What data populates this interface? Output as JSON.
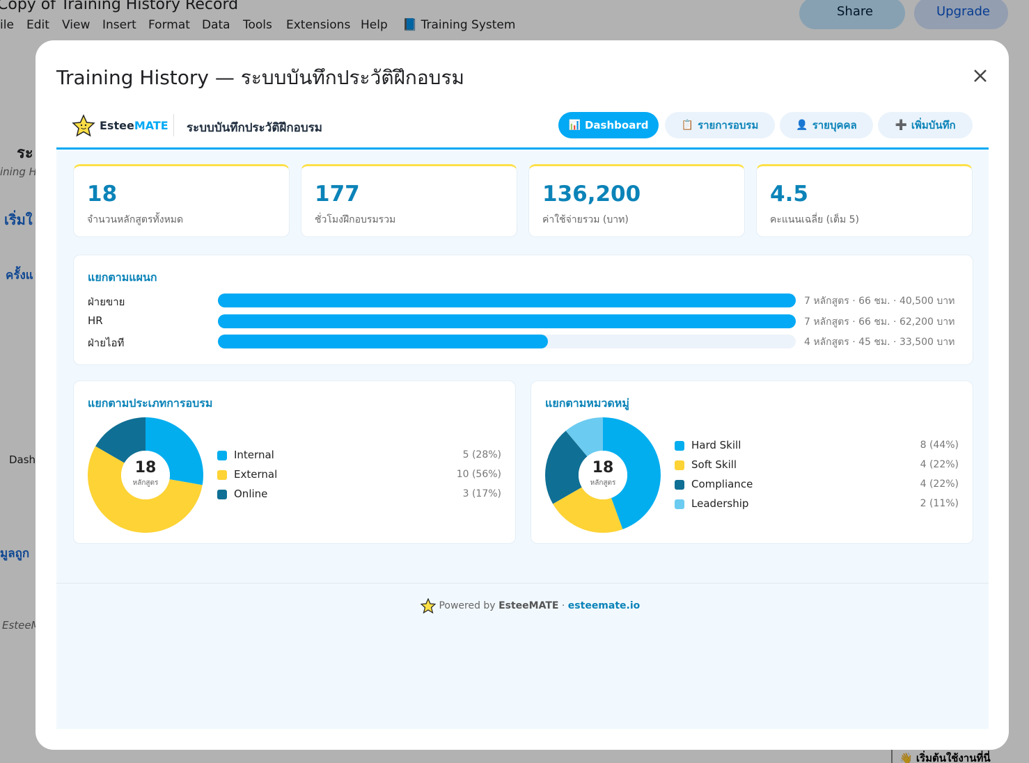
{
  "sheet": {
    "doc_title": "Copy of Training History Record",
    "menu": [
      "ile",
      "Edit",
      "View",
      "Insert",
      "Format",
      "Data",
      "Tools",
      "Extensions",
      "Help"
    ],
    "training_system": "Training System",
    "share": "Share",
    "upgrade": "Upgrade",
    "sidebar_fragments": [
      "ระ",
      "ining H",
      "เริ่มใ",
      "ครั้งแ",
      "Dash",
      "มูลถูก",
      "EsteeM"
    ],
    "help_link": "เริ่มต้นใช้งานที่นี่"
  },
  "dialog": {
    "title": "Training History — ระบบบันทึกประวัติฝึกอบรม",
    "app": {
      "brand_a": "Estee",
      "brand_b": "MATE",
      "subtitle": "ระบบบันทึกประวัติฝึกอบรม",
      "tabs": [
        {
          "icon": "📊",
          "label": "Dashboard",
          "active": true
        },
        {
          "icon": "📋",
          "label": "รายการอบรม",
          "active": false
        },
        {
          "icon": "👤",
          "label": "รายบุคคล",
          "active": false
        },
        {
          "icon": "➕",
          "label": "เพิ่มบันทึก",
          "active": false
        }
      ],
      "kpis": [
        {
          "value": "18",
          "label": "จำนวนหลักสูตรทั้งหมด"
        },
        {
          "value": "177",
          "label": "ชั่วโมงฝึกอบรมรวม"
        },
        {
          "value": "136,200",
          "label": "ค่าใช้จ่ายรวม (บาท)"
        },
        {
          "value": "4.5",
          "label": "คะแนนเฉลี่ย (เต็ม 5)"
        }
      ],
      "departments": {
        "title": "แยกตามแผนก",
        "color": "#03a9f4",
        "rows": [
          {
            "name": "ฝ่ายขาย",
            "value": 7,
            "label": "7 หลักสูตร · 66 ชม. · 40,500 บาท"
          },
          {
            "name": "HR",
            "value": 7,
            "label": "7 หลักสูตร · 66 ชม. · 62,200 บาท"
          },
          {
            "name": "ฝ่ายไอที",
            "value": 4,
            "label": "4 หลักสูตร · 45 ชม. · 33,500 บาท"
          }
        ]
      },
      "pies": [
        {
          "title": "แยกตามประเภทการอบรม",
          "center_value": "18",
          "center_label": "หลักสูตร",
          "categories": [
            "Internal",
            "External",
            "Online"
          ],
          "values": [
            5,
            10,
            3
          ],
          "value_labels": [
            "5 (28%)",
            "10 (56%)",
            "3 (17%)"
          ],
          "colors": [
            "#03aeef",
            "#fdd335",
            "#106f94"
          ]
        },
        {
          "title": "แยกตามหมวดหมู่",
          "center_value": "18",
          "center_label": "หลักสูตร",
          "categories": [
            "Hard Skill",
            "Soft Skill",
            "Compliance",
            "Leadership"
          ],
          "values": [
            8,
            4,
            4,
            2
          ],
          "value_labels": [
            "8 (44%)",
            "4 (22%)",
            "4 (22%)",
            "2 (11%)"
          ],
          "colors": [
            "#03aeef",
            "#fdd335",
            "#106f94",
            "#6ccbf0"
          ]
        }
      ]
    },
    "footer": {
      "powered": "Powered by",
      "brand": "EsteeMATE",
      "sep": "·",
      "link": "esteemate.io"
    }
  }
}
